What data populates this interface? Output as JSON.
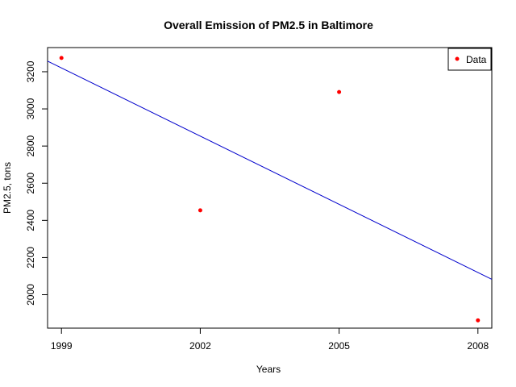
{
  "chart_data": {
    "type": "scatter",
    "title": "Overall Emission of PM2.5 in Baltimore",
    "xlabel": "Years",
    "ylabel": "PM2.5, tons",
    "xlim": [
      1998.7,
      2008.3
    ],
    "ylim": [
      1820,
      3330
    ],
    "x_ticks": [
      1999,
      2002,
      2005,
      2008
    ],
    "y_ticks": [
      2000,
      2200,
      2400,
      2600,
      2800,
      3000,
      3200
    ],
    "grid": false,
    "legend_position": "top-right",
    "series": [
      {
        "name": "Data",
        "type": "scatter",
        "color": "#ff0000",
        "points": [
          {
            "x": 1999,
            "y": 3274
          },
          {
            "x": 2002,
            "y": 2454
          },
          {
            "x": 2005,
            "y": 3091
          },
          {
            "x": 2008,
            "y": 1862
          }
        ]
      },
      {
        "type": "line",
        "color": "#0000cc",
        "points": [
          {
            "x": 1998.7,
            "y": 3257
          },
          {
            "x": 2008.3,
            "y": 2083
          }
        ]
      }
    ]
  }
}
